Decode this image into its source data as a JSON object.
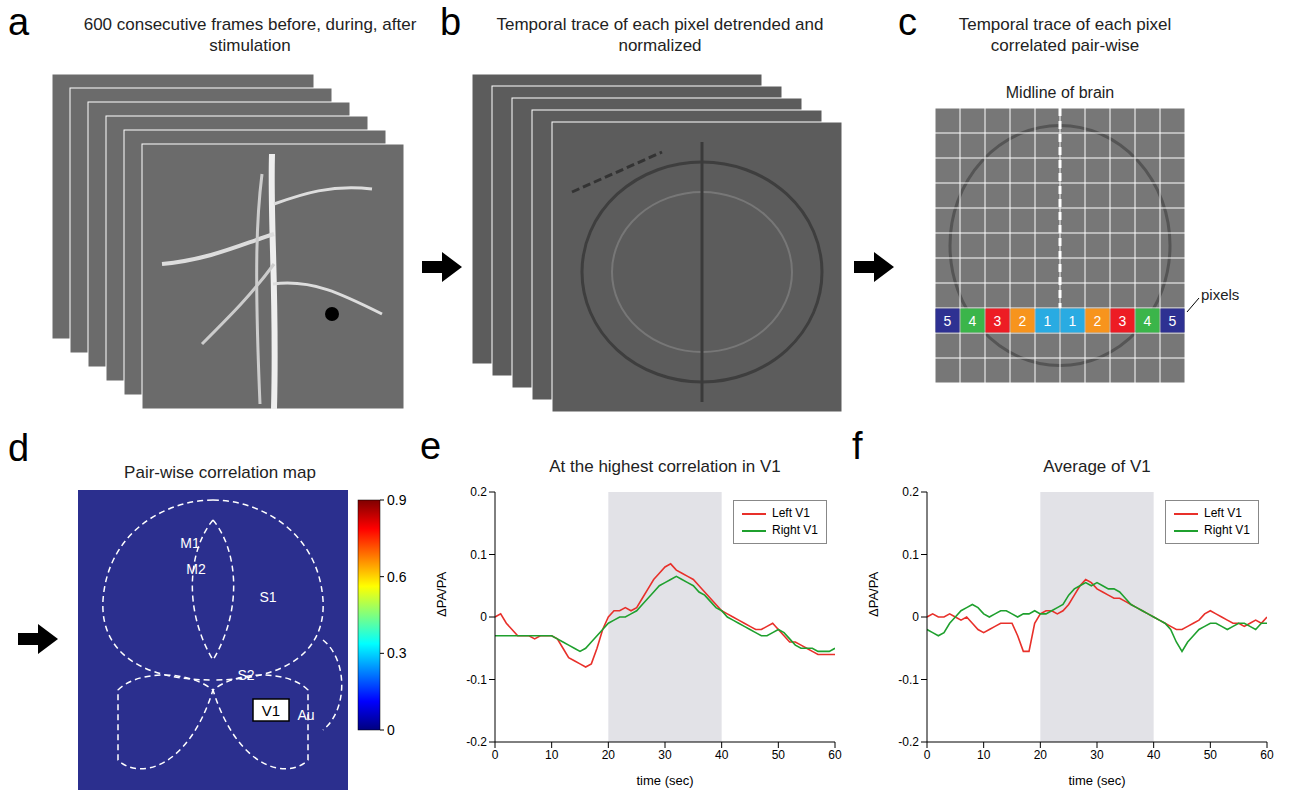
{
  "panels": [
    {
      "letter": "a",
      "title": "600 consecutive frames before, during, after stimulation"
    },
    {
      "letter": "b",
      "title": "Temporal trace of each pixel detrended and normalized"
    },
    {
      "letter": "c",
      "title": "Temporal trace of each pixel correlated pair-wise",
      "midline_label": "Midline of brain",
      "pixel_labels": [
        5,
        4,
        3,
        2,
        1,
        1,
        2,
        3,
        4,
        5
      ],
      "pixel_colors": [
        "#2e3192",
        "#3bb54a",
        "#ed1c24",
        "#f7941d",
        "#29abe2",
        "#29abe2",
        "#f7941d",
        "#ed1c24",
        "#3bb54a",
        "#2e3192"
      ],
      "pixels_label": "pixels"
    },
    {
      "letter": "d",
      "title": "Pair-wise correlation map",
      "regions": [
        "M1",
        "M2",
        "S1",
        "S2",
        "V1",
        "Au"
      ],
      "colorbar": {
        "range": [
          0,
          0.9
        ],
        "ticks": [
          0,
          0.3,
          0.6,
          0.9
        ]
      }
    }
  ],
  "chart_data": [
    {
      "panel": "e",
      "type": "line",
      "title": "At the highest correlation in V1",
      "x": [
        0,
        1,
        2,
        3,
        4,
        5,
        6,
        7,
        8,
        9,
        10,
        11,
        12,
        13,
        14,
        15,
        16,
        17,
        18,
        19,
        20,
        21,
        22,
        23,
        24,
        25,
        26,
        27,
        28,
        29,
        30,
        31,
        32,
        33,
        34,
        35,
        36,
        37,
        38,
        39,
        40,
        41,
        42,
        43,
        44,
        45,
        46,
        47,
        48,
        49,
        50,
        51,
        52,
        53,
        54,
        55,
        56,
        57,
        58,
        59,
        60
      ],
      "xlim": [
        0,
        60
      ],
      "xticks": [
        0,
        10,
        20,
        30,
        40,
        50,
        60
      ],
      "ylim": [
        -0.2,
        0.2
      ],
      "yticks": [
        -0.2,
        -0.1,
        0,
        0.1,
        0.2
      ],
      "x_label": "time (sec)",
      "y_label": "ΔPA/PA",
      "shade": [
        20,
        40
      ],
      "legend": "upper right",
      "series": [
        {
          "name": "Left V1",
          "color": "#e8302a",
          "values": [
            0,
            0.005,
            -0.01,
            -0.02,
            -0.03,
            -0.03,
            -0.03,
            -0.035,
            -0.03,
            -0.03,
            -0.03,
            -0.035,
            -0.05,
            -0.065,
            -0.07,
            -0.075,
            -0.08,
            -0.075,
            -0.05,
            -0.02,
            0,
            0.01,
            0.01,
            0.015,
            0.01,
            0.015,
            0.03,
            0.045,
            0.06,
            0.07,
            0.08,
            0.085,
            0.075,
            0.07,
            0.065,
            0.06,
            0.05,
            0.04,
            0.03,
            0.02,
            0.01,
            0.005,
            0,
            -0.005,
            -0.01,
            -0.015,
            -0.02,
            -0.02,
            -0.015,
            -0.01,
            -0.02,
            -0.03,
            -0.04,
            -0.04,
            -0.045,
            -0.05,
            -0.055,
            -0.06,
            -0.06,
            -0.06,
            -0.06
          ]
        },
        {
          "name": "Right V1",
          "color": "#1fa02e",
          "values": [
            -0.03,
            -0.03,
            -0.03,
            -0.03,
            -0.03,
            -0.03,
            -0.03,
            -0.03,
            -0.03,
            -0.03,
            -0.03,
            -0.035,
            -0.04,
            -0.045,
            -0.05,
            -0.055,
            -0.05,
            -0.04,
            -0.03,
            -0.02,
            -0.01,
            -0.005,
            0,
            0,
            0.005,
            0.01,
            0.02,
            0.03,
            0.04,
            0.05,
            0.055,
            0.06,
            0.065,
            0.06,
            0.055,
            0.05,
            0.04,
            0.035,
            0.025,
            0.015,
            0.01,
            0,
            -0.005,
            -0.01,
            -0.015,
            -0.02,
            -0.025,
            -0.03,
            -0.03,
            -0.025,
            -0.02,
            -0.025,
            -0.035,
            -0.045,
            -0.05,
            -0.05,
            -0.05,
            -0.055,
            -0.055,
            -0.055,
            -0.05
          ]
        }
      ]
    },
    {
      "panel": "f",
      "type": "line",
      "title": "Average of V1",
      "x": [
        0,
        1,
        2,
        3,
        4,
        5,
        6,
        7,
        8,
        9,
        10,
        11,
        12,
        13,
        14,
        15,
        16,
        17,
        18,
        19,
        20,
        21,
        22,
        23,
        24,
        25,
        26,
        27,
        28,
        29,
        30,
        31,
        32,
        33,
        34,
        35,
        36,
        37,
        38,
        39,
        40,
        41,
        42,
        43,
        44,
        45,
        46,
        47,
        48,
        49,
        50,
        51,
        52,
        53,
        54,
        55,
        56,
        57,
        58,
        59,
        60
      ],
      "xlim": [
        0,
        60
      ],
      "xticks": [
        0,
        10,
        20,
        30,
        40,
        50,
        60
      ],
      "ylim": [
        -0.2,
        0.2
      ],
      "yticks": [
        -0.2,
        -0.1,
        0,
        0.1,
        0.2
      ],
      "x_label": "time (sec)",
      "y_label": "ΔPA/PA",
      "shade": [
        20,
        40
      ],
      "legend": "upper right",
      "series": [
        {
          "name": "Left V1",
          "color": "#e8302a",
          "values": [
            0,
            0.005,
            0,
            0,
            0.005,
            0,
            -0.005,
            0,
            -0.01,
            -0.02,
            -0.025,
            -0.02,
            -0.015,
            -0.01,
            -0.01,
            -0.01,
            -0.03,
            -0.055,
            -0.055,
            -0.01,
            0.005,
            0.01,
            0.01,
            0.005,
            0.01,
            0.02,
            0.035,
            0.05,
            0.06,
            0.055,
            0.045,
            0.04,
            0.035,
            0.03,
            0.03,
            0.025,
            0.02,
            0.015,
            0.01,
            0.005,
            0,
            -0.005,
            -0.01,
            -0.015,
            -0.02,
            -0.02,
            -0.015,
            -0.01,
            -0.005,
            0.005,
            0.01,
            0.005,
            0,
            -0.005,
            -0.01,
            -0.01,
            -0.015,
            -0.01,
            -0.005,
            -0.01,
            0
          ]
        },
        {
          "name": "Right V1",
          "color": "#1fa02e",
          "values": [
            -0.02,
            -0.025,
            -0.03,
            -0.025,
            -0.01,
            0,
            0.01,
            0.015,
            0.02,
            0.015,
            0.005,
            0,
            0.005,
            0.01,
            0.01,
            0.005,
            0,
            0.005,
            0.005,
            0.01,
            0.005,
            0.005,
            0.01,
            0.015,
            0.02,
            0.035,
            0.045,
            0.05,
            0.055,
            0.05,
            0.055,
            0.05,
            0.045,
            0.045,
            0.04,
            0.03,
            0.02,
            0.015,
            0.01,
            0.005,
            0,
            -0.005,
            -0.01,
            -0.02,
            -0.04,
            -0.055,
            -0.04,
            -0.03,
            -0.02,
            -0.015,
            -0.01,
            -0.01,
            -0.015,
            -0.02,
            -0.015,
            -0.01,
            -0.01,
            -0.015,
            -0.02,
            -0.01,
            -0.01
          ]
        }
      ]
    }
  ]
}
